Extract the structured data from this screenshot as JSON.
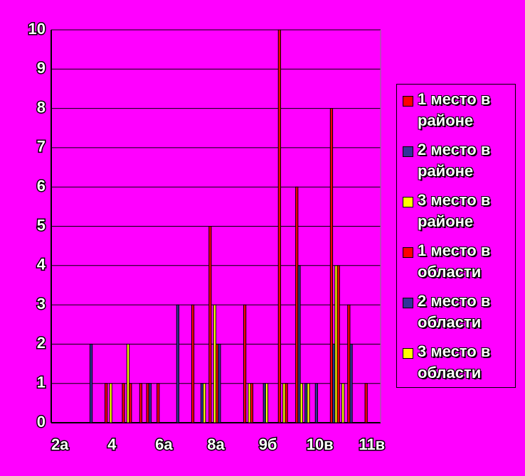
{
  "chart_data": {
    "type": "bar",
    "categories": [
      "2а",
      null,
      null,
      "4",
      null,
      null,
      "6а",
      null,
      null,
      "8а",
      null,
      null,
      "9б",
      null,
      null,
      "10в",
      null,
      null,
      "11в"
    ],
    "series": [
      {
        "name": "1 место в районе",
        "color": "#ff0000",
        "values": [
          0,
          0,
          0,
          1,
          1,
          1,
          1,
          0,
          3,
          5,
          0,
          3,
          0,
          10,
          6,
          0,
          8,
          3,
          1
        ]
      },
      {
        "name": "2 место в районе",
        "color": "#333399",
        "values": [
          0,
          0,
          2,
          0,
          0,
          0,
          0,
          3,
          0,
          0,
          0,
          0,
          1,
          0,
          4,
          1,
          2,
          2,
          0
        ]
      },
      {
        "name": "3 место в районе",
        "color": "#ffff00",
        "values": [
          0,
          0,
          0,
          1,
          2,
          0,
          0,
          0,
          0,
          3,
          0,
          1,
          1,
          1,
          1,
          0,
          4,
          0,
          0
        ]
      },
      {
        "name": "1 место в области",
        "color": "#ff0000",
        "values": [
          0,
          0,
          0,
          0,
          1,
          1,
          0,
          0,
          0,
          2,
          0,
          1,
          0,
          1,
          0,
          0,
          4,
          0,
          0
        ]
      },
      {
        "name": "2 место в области",
        "color": "#333399",
        "values": [
          0,
          0,
          0,
          0,
          0,
          1,
          0,
          0,
          1,
          2,
          0,
          0,
          0,
          0,
          1,
          0,
          0,
          0,
          0
        ]
      },
      {
        "name": "3 место в области",
        "color": "#ffff00",
        "values": [
          0,
          0,
          0,
          0,
          0,
          0,
          0,
          0,
          1,
          0,
          0,
          0,
          0,
          0,
          1,
          0,
          1,
          0,
          0
        ]
      }
    ],
    "ylim": [
      0,
      10
    ],
    "yticks": [
      0,
      1,
      2,
      3,
      4,
      5,
      6,
      7,
      8,
      9,
      10
    ],
    "grid": true,
    "legend": "right"
  }
}
